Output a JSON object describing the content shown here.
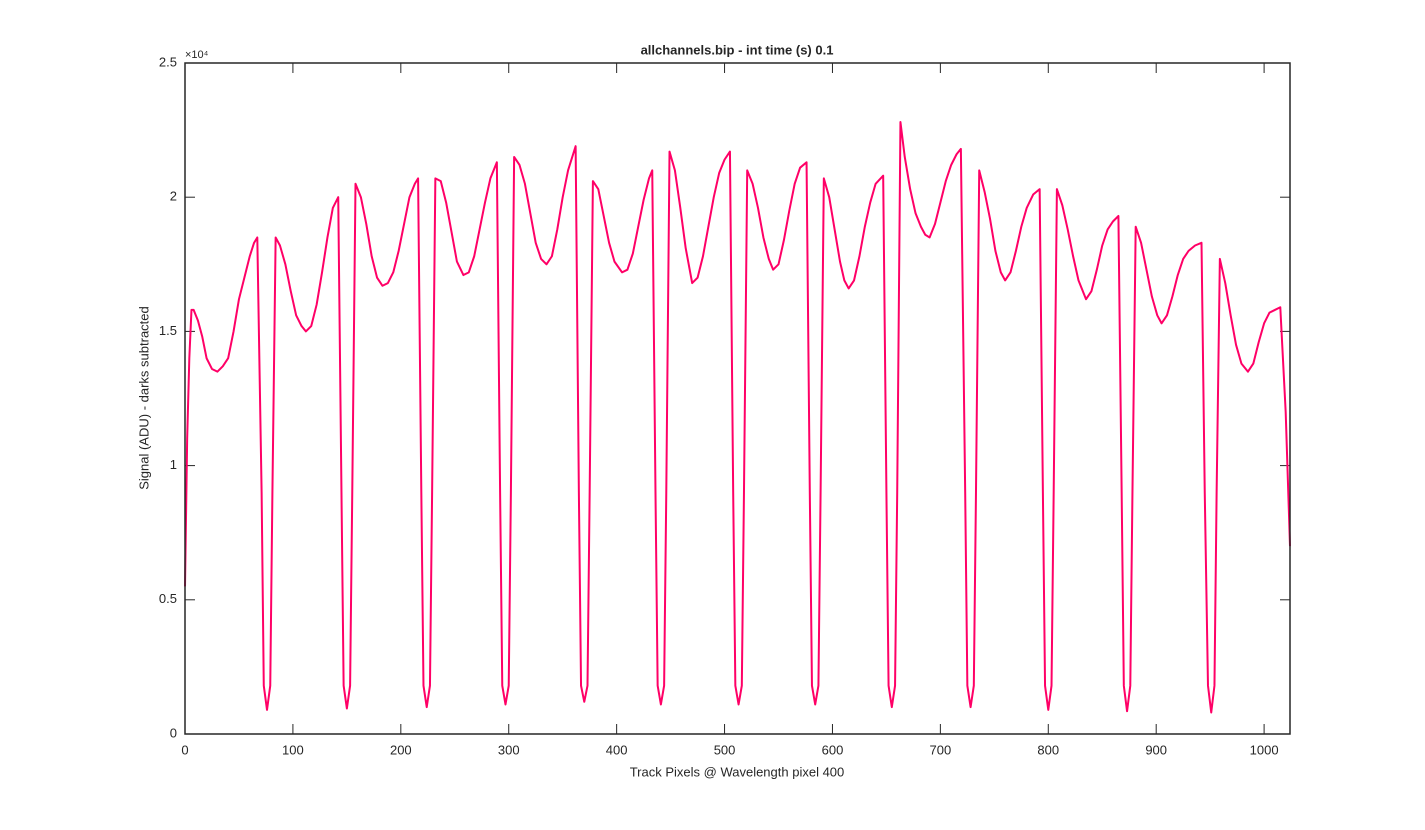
{
  "chart_data": {
    "type": "line",
    "title": "allchannels.bip - int time (s) 0.1",
    "xlabel": "Track Pixels @ Wavelength pixel 400",
    "ylabel": "Signal (ADU) - darks subtracted",
    "y_exponent": "×10⁴",
    "xlim": [
      0,
      1024
    ],
    "xticks": [
      0,
      100,
      200,
      300,
      400,
      500,
      600,
      700,
      800,
      900,
      1000
    ],
    "ylim": [
      0,
      25000
    ],
    "yticks": [
      0,
      {
        "value": 5000,
        "label": "0.5"
      },
      {
        "value": 10000,
        "label": "1"
      },
      {
        "value": 15000,
        "label": "1.5"
      },
      {
        "value": 20000,
        "label": "2"
      },
      {
        "value": 25000,
        "label": "2.5"
      }
    ],
    "x": [
      0,
      2,
      4,
      6,
      8,
      12,
      16,
      20,
      25,
      30,
      35,
      40,
      45,
      50,
      55,
      60,
      64,
      67,
      71,
      73,
      76,
      79,
      81,
      84,
      88,
      93,
      98,
      103,
      108,
      112,
      117,
      122,
      127,
      132,
      137,
      142,
      145,
      147,
      150,
      153,
      155,
      158,
      163,
      168,
      173,
      178,
      183,
      188,
      193,
      198,
      203,
      208,
      213,
      216,
      219,
      221,
      224,
      227,
      229,
      232,
      237,
      242,
      247,
      252,
      258,
      263,
      268,
      273,
      278,
      283,
      289,
      292,
      294,
      297,
      300,
      302,
      305,
      310,
      315,
      320,
      325,
      330,
      335,
      340,
      345,
      350,
      355,
      362,
      365,
      367,
      370,
      373,
      375,
      378,
      383,
      388,
      393,
      398,
      405,
      410,
      415,
      420,
      425,
      430,
      433,
      436,
      438,
      441,
      444,
      446,
      449,
      454,
      459,
      464,
      470,
      475,
      480,
      485,
      490,
      495,
      500,
      505,
      508,
      510,
      513,
      516,
      518,
      521,
      526,
      531,
      536,
      541,
      545,
      550,
      555,
      560,
      565,
      570,
      576,
      579,
      581,
      584,
      587,
      589,
      592,
      597,
      602,
      607,
      611,
      615,
      620,
      625,
      630,
      635,
      640,
      647,
      650,
      652,
      655,
      658,
      660,
      663,
      667,
      672,
      677,
      682,
      686,
      690,
      695,
      700,
      705,
      710,
      715,
      719,
      723,
      725,
      728,
      731,
      733,
      736,
      741,
      746,
      751,
      756,
      760,
      765,
      770,
      775,
      780,
      786,
      792,
      795,
      797,
      800,
      803,
      805,
      808,
      813,
      818,
      823,
      828,
      835,
      840,
      845,
      850,
      855,
      860,
      865,
      868,
      870,
      873,
      876,
      878,
      881,
      886,
      891,
      896,
      901,
      905,
      910,
      915,
      920,
      925,
      930,
      936,
      942,
      945,
      948,
      951,
      954,
      956,
      959,
      964,
      969,
      974,
      979,
      985,
      990,
      995,
      1000,
      1005,
      1010,
      1015,
      1020,
      1024
    ],
    "series": [
      {
        "color": "#ff0066",
        "values": [
          5500,
          11000,
          14000,
          15800,
          15800,
          15400,
          14800,
          14000,
          13600,
          13500,
          13700,
          14000,
          15000,
          16200,
          17000,
          17800,
          18300,
          18500,
          9000,
          1800,
          900,
          1800,
          9000,
          18500,
          18200,
          17500,
          16500,
          15600,
          15200,
          15000,
          15200,
          16000,
          17200,
          18500,
          19600,
          20000,
          9000,
          1800,
          950,
          1800,
          9000,
          20500,
          20000,
          19000,
          17800,
          17000,
          16700,
          16800,
          17200,
          18000,
          19000,
          20000,
          20500,
          20700,
          9000,
          1800,
          1000,
          1800,
          9000,
          20700,
          20600,
          19800,
          18700,
          17600,
          17100,
          17200,
          17800,
          18800,
          19800,
          20700,
          21300,
          9000,
          1800,
          1100,
          1800,
          9000,
          21500,
          21200,
          20500,
          19400,
          18300,
          17700,
          17500,
          17800,
          18800,
          20000,
          21000,
          21900,
          9000,
          1800,
          1200,
          1800,
          9000,
          20600,
          20300,
          19300,
          18300,
          17600,
          17200,
          17300,
          17900,
          18900,
          19900,
          20700,
          21000,
          9000,
          1800,
          1100,
          1800,
          9000,
          21700,
          21000,
          19600,
          18100,
          16800,
          17000,
          17800,
          18900,
          20000,
          20900,
          21400,
          21700,
          9000,
          1800,
          1100,
          1800,
          9000,
          21000,
          20500,
          19600,
          18500,
          17700,
          17300,
          17500,
          18400,
          19500,
          20500,
          21100,
          21300,
          9000,
          1800,
          1100,
          1800,
          9000,
          20700,
          20000,
          18800,
          17600,
          16900,
          16600,
          16900,
          17800,
          18900,
          19800,
          20500,
          20800,
          9000,
          1800,
          1000,
          1800,
          9000,
          22800,
          21500,
          20300,
          19400,
          18900,
          18600,
          18500,
          19000,
          19800,
          20600,
          21200,
          21600,
          21800,
          9000,
          1800,
          1000,
          1800,
          9000,
          21000,
          20200,
          19200,
          18000,
          17200,
          16900,
          17200,
          18000,
          18900,
          19600,
          20100,
          20300,
          9000,
          1800,
          900,
          1800,
          9000,
          20300,
          19700,
          18800,
          17800,
          16900,
          16200,
          16500,
          17300,
          18200,
          18800,
          19100,
          19300,
          9000,
          1800,
          850,
          1800,
          9000,
          18900,
          18300,
          17300,
          16300,
          15600,
          15300,
          15600,
          16300,
          17100,
          17700,
          18000,
          18200,
          18300,
          9000,
          1800,
          800,
          1800,
          9000,
          17700,
          16800,
          15600,
          14500,
          13800,
          13500,
          13800,
          14600,
          15300,
          15700,
          15800,
          15900,
          12000,
          7000
        ]
      }
    ]
  }
}
